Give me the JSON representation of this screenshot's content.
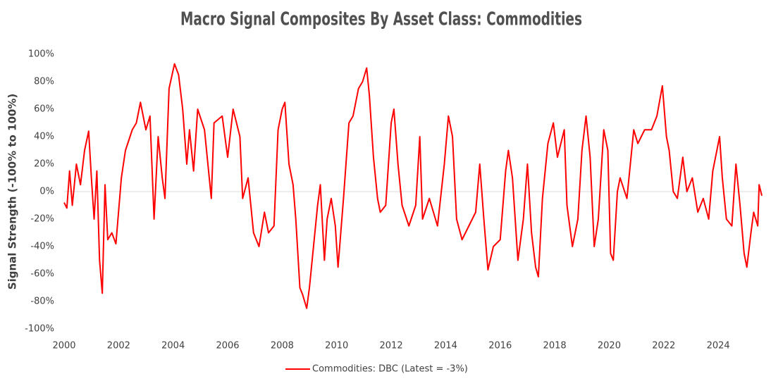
{
  "chart_data": {
    "type": "line",
    "title": "Macro Signal Composites By Asset Class: Commodities",
    "y_label": "Signal Strength (-100% to 100%)",
    "x": [
      2000.0,
      2000.1,
      2000.2,
      2000.3,
      2000.45,
      2000.6,
      2000.75,
      2000.9,
      2001.0,
      2001.1,
      2001.2,
      2001.3,
      2001.4,
      2001.5,
      2001.6,
      2001.75,
      2001.9,
      2002.1,
      2002.25,
      2002.5,
      2002.65,
      2002.8,
      2003.0,
      2003.15,
      2003.3,
      2003.45,
      2003.6,
      2003.7,
      2003.85,
      2004.05,
      2004.2,
      2004.35,
      2004.5,
      2004.6,
      2004.75,
      2004.9,
      2005.15,
      2005.4,
      2005.5,
      2005.8,
      2006.0,
      2006.2,
      2006.45,
      2006.55,
      2006.75,
      2006.95,
      2007.15,
      2007.35,
      2007.5,
      2007.7,
      2007.85,
      2008.0,
      2008.1,
      2008.25,
      2008.4,
      2008.5,
      2008.65,
      2008.75,
      2008.9,
      2009.0,
      2009.15,
      2009.3,
      2009.4,
      2009.55,
      2009.65,
      2009.8,
      2009.95,
      2010.05,
      2010.25,
      2010.45,
      2010.6,
      2010.8,
      2010.95,
      2011.1,
      2011.2,
      2011.35,
      2011.5,
      2011.6,
      2011.8,
      2012.0,
      2012.1,
      2012.25,
      2012.4,
      2012.65,
      2012.9,
      2013.05,
      2013.15,
      2013.4,
      2013.7,
      2013.95,
      2014.1,
      2014.25,
      2014.4,
      2014.6,
      2014.85,
      2015.1,
      2015.25,
      2015.4,
      2015.55,
      2015.75,
      2016.0,
      2016.2,
      2016.3,
      2016.45,
      2016.65,
      2016.85,
      2017.0,
      2017.15,
      2017.3,
      2017.4,
      2017.55,
      2017.75,
      2017.95,
      2018.1,
      2018.35,
      2018.45,
      2018.65,
      2018.85,
      2019.0,
      2019.15,
      2019.3,
      2019.45,
      2019.6,
      2019.8,
      2019.95,
      2020.05,
      2020.15,
      2020.3,
      2020.4,
      2020.65,
      2020.9,
      2021.05,
      2021.3,
      2021.55,
      2021.75,
      2021.95,
      2022.1,
      2022.2,
      2022.35,
      2022.5,
      2022.7,
      2022.85,
      2023.05,
      2023.25,
      2023.45,
      2023.65,
      2023.8,
      2024.05,
      2024.15,
      2024.3,
      2024.5,
      2024.65,
      2024.8,
      2024.95,
      2025.05,
      2025.2,
      2025.3,
      2025.45,
      2025.5,
      2025.6
    ],
    "series": [
      {
        "name": "Commodities: DBC (Latest = -3%)",
        "color": "#ff0000",
        "values": [
          -8,
          -12,
          15,
          -10,
          20,
          5,
          30,
          44,
          10,
          -20,
          15,
          -50,
          -74,
          5,
          -35,
          -30,
          -38,
          10,
          30,
          45,
          50,
          65,
          45,
          55,
          -20,
          40,
          10,
          -5,
          75,
          93,
          85,
          60,
          20,
          45,
          15,
          60,
          45,
          -5,
          50,
          55,
          25,
          60,
          40,
          -5,
          10,
          -30,
          -40,
          -15,
          -30,
          -25,
          45,
          60,
          65,
          20,
          5,
          -20,
          -70,
          -75,
          -85,
          -70,
          -40,
          -10,
          5,
          -50,
          -20,
          -5,
          -25,
          -55,
          -5,
          50,
          55,
          75,
          80,
          90,
          70,
          25,
          -5,
          -15,
          -10,
          50,
          60,
          20,
          -10,
          -25,
          -10,
          40,
          -20,
          -5,
          -25,
          20,
          55,
          40,
          -20,
          -35,
          -25,
          -15,
          20,
          -20,
          -57,
          -40,
          -35,
          15,
          30,
          10,
          -50,
          -20,
          20,
          -30,
          -55,
          -62,
          -5,
          35,
          50,
          25,
          45,
          -10,
          -40,
          -20,
          30,
          55,
          25,
          -40,
          -20,
          45,
          30,
          -45,
          -50,
          0,
          10,
          -5,
          45,
          35,
          45,
          45,
          55,
          77,
          40,
          30,
          0,
          -5,
          25,
          0,
          10,
          -15,
          -5,
          -20,
          15,
          40,
          10,
          -20,
          -25,
          20,
          -10,
          -45,
          -55,
          -30,
          -15,
          -25,
          5,
          -3
        ]
      }
    ],
    "xlim": [
      2000,
      2025.6
    ],
    "xticks": [
      2000,
      2002,
      2004,
      2006,
      2008,
      2010,
      2012,
      2014,
      2016,
      2018,
      2020,
      2022,
      2024
    ],
    "ylim": [
      -100,
      100
    ],
    "yticks": [
      {
        "value": -100,
        "label": "-100%"
      },
      {
        "value": -80,
        "label": "-80%"
      },
      {
        "value": -60,
        "label": "-60%"
      },
      {
        "value": -40,
        "label": "-40%"
      },
      {
        "value": -20,
        "label": "-20%"
      },
      {
        "value": 0,
        "label": "0%"
      },
      {
        "value": 20,
        "label": "20%"
      },
      {
        "value": 40,
        "label": "40%"
      },
      {
        "value": 60,
        "label": "60%"
      },
      {
        "value": 80,
        "label": "80%"
      },
      {
        "value": 100,
        "label": "100%"
      }
    ],
    "grid": false,
    "legend": "bottom"
  }
}
